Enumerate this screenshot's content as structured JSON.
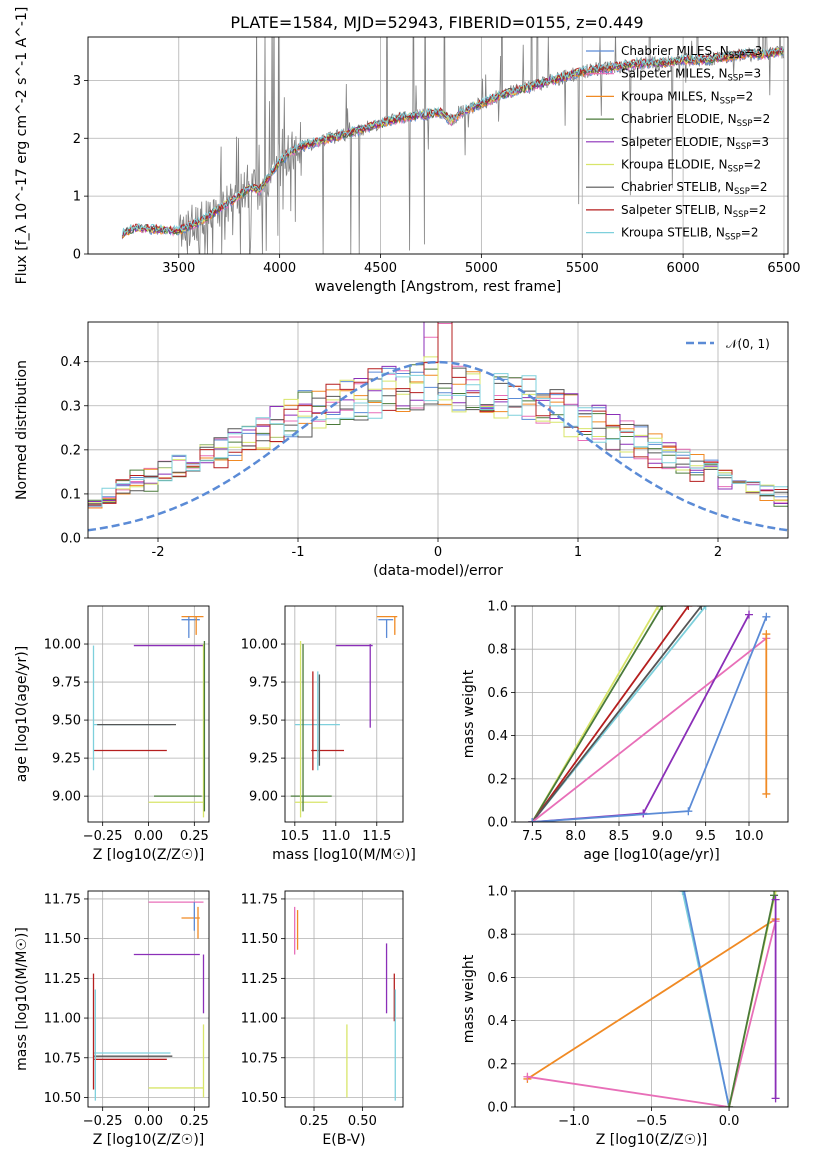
{
  "figure": {
    "title": "PLATE=1584, MJD=52943, FIBERID=0155, z=0.449"
  },
  "colors": {
    "Chabrier MILES": "#5b8bd6",
    "Salpeter MILES": "#e86fb8",
    "Kroupa MILES": "#f08a24",
    "Chabrier ELODIE": "#4a7a3a",
    "Salpeter ELODIE": "#8b2fb8",
    "Kroupa ELODIE": "#d8e56a",
    "Chabrier STELIB": "#555555",
    "Salpeter STELIB": "#b51f1f",
    "Kroupa STELIB": "#7ed0dc"
  },
  "chart_data": [
    {
      "id": "spectrum",
      "type": "line",
      "title": "PLATE=1584, MJD=52943, FIBERID=0155, z=0.449",
      "xlabel": "wavelength [Angstrom, rest frame]",
      "ylabel": "Flux [f_λ 10^-17 erg cm^-2 s^-1 A^-1]",
      "xlim": [
        3050,
        6520
      ],
      "ylim": [
        0,
        3.75
      ],
      "xticks": [
        3500,
        4000,
        4500,
        5000,
        5500,
        6000,
        6500
      ],
      "yticks": [
        0,
        1,
        2,
        3
      ],
      "legend_position": "top-right",
      "legend": [
        {
          "label": "Chabrier MILES, N_SSP=3",
          "main": "Chabrier MILES, N",
          "sub": "SSP",
          "tail": "=3"
        },
        {
          "label": "Salpeter MILES, N_SSP=3",
          "main": "Salpeter MILES, N",
          "sub": "SSP",
          "tail": "=3"
        },
        {
          "label": "Kroupa MILES, N_SSP=2",
          "main": "Kroupa MILES, N",
          "sub": "SSP",
          "tail": "=2"
        },
        {
          "label": "Chabrier ELODIE, N_SSP=2",
          "main": "Chabrier ELODIE, N",
          "sub": "SSP",
          "tail": "=2"
        },
        {
          "label": "Salpeter ELODIE, N_SSP=3",
          "main": "Salpeter ELODIE, N",
          "sub": "SSP",
          "tail": "=3"
        },
        {
          "label": "Kroupa ELODIE, N_SSP=2",
          "main": "Kroupa ELODIE, N",
          "sub": "SSP",
          "tail": "=2"
        },
        {
          "label": "Chabrier STELIB, N_SSP=2",
          "main": "Chabrier STELIB, N",
          "sub": "SSP",
          "tail": "=2"
        },
        {
          "label": "Salpeter STELIB, N_SSP=2",
          "main": "Salpeter STELIB, N",
          "sub": "SSP",
          "tail": "=2"
        },
        {
          "label": "Kroupa STELIB, N_SSP=2",
          "main": "Kroupa STELIB, N",
          "sub": "SSP",
          "tail": "=2"
        }
      ],
      "model_continuum": {
        "x": [
          3220,
          3260,
          3300,
          3400,
          3500,
          3600,
          3700,
          3800,
          3850,
          3900,
          3950,
          4000,
          4050,
          4100,
          4200,
          4300,
          4400,
          4500,
          4600,
          4700,
          4800,
          4850,
          4900,
          5000,
          5100,
          5200,
          5300,
          5400,
          5500,
          5600,
          5700,
          5800,
          5900,
          6000,
          6100,
          6200,
          6300,
          6400,
          6500
        ],
        "y": [
          0.35,
          0.42,
          0.45,
          0.42,
          0.4,
          0.55,
          0.78,
          1.0,
          1.15,
          1.1,
          1.35,
          1.6,
          1.75,
          1.85,
          1.95,
          2.05,
          2.15,
          2.25,
          2.35,
          2.4,
          2.45,
          2.3,
          2.45,
          2.6,
          2.75,
          2.85,
          2.95,
          3.05,
          3.15,
          3.2,
          3.25,
          3.3,
          3.3,
          3.35,
          3.35,
          3.4,
          3.45,
          3.45,
          3.5
        ]
      }
    },
    {
      "id": "residuals",
      "type": "histogram",
      "xlabel": "(data-model)/error",
      "ylabel": "Normed distribution",
      "xlim": [
        -2.5,
        2.5
      ],
      "ylim": [
        0,
        0.49
      ],
      "xticks": [
        -2,
        -1,
        0,
        1,
        2
      ],
      "yticks": [
        0.0,
        0.1,
        0.2,
        0.3,
        0.4
      ],
      "legend_position": "top-right",
      "legend": [
        {
          "label": "N(0,1)",
          "text": "𝒩(0, 1)"
        }
      ],
      "bin_width": 0.1
    },
    {
      "id": "age-vs-Z",
      "type": "scatter",
      "xlabel": "Z [log10(Z/Z☉)]",
      "ylabel": "age [log10(age/yr)]",
      "xlim": [
        -0.33,
        0.33
      ],
      "ylim": [
        8.83,
        10.25
      ],
      "xticks": [
        -0.25,
        0.0,
        0.25
      ],
      "yticks": [
        9.0,
        9.25,
        9.5,
        9.75,
        10.0
      ],
      "segments": [
        {
          "series": "Kroupa MILES",
          "h": [
            0.18,
            0.3,
            10.18
          ]
        },
        {
          "series": "Chabrier MILES",
          "h": [
            0.18,
            0.28,
            10.16
          ]
        },
        {
          "series": "Salpeter ELODIE",
          "h": [
            -0.08,
            0.3,
            9.99
          ]
        },
        {
          "series": "Kroupa STELIB",
          "h": [
            -0.3,
            0.12,
            9.47
          ]
        },
        {
          "series": "Chabrier STELIB",
          "h": [
            -0.28,
            0.15,
            9.47
          ]
        },
        {
          "series": "Salpeter STELIB",
          "h": [
            -0.3,
            0.1,
            9.3
          ]
        },
        {
          "series": "Chabrier ELODIE",
          "h": [
            0.03,
            0.29,
            9.0
          ]
        },
        {
          "series": "Kroupa ELODIE",
          "h": [
            0.0,
            0.3,
            8.96
          ]
        },
        {
          "series": "Kroupa STELIB",
          "v": [
            -0.3,
            9.17,
            9.99
          ]
        },
        {
          "series": "Kroupa ELODIE",
          "v": [
            0.3,
            8.86,
            10.0
          ]
        },
        {
          "series": "Chabrier ELODIE",
          "v": [
            0.305,
            8.9,
            10.02
          ]
        },
        {
          "series": "Chabrier MILES",
          "v": [
            0.22,
            10.04,
            10.18
          ]
        },
        {
          "series": "Kroupa MILES",
          "v": [
            0.26,
            10.06,
            10.18
          ]
        }
      ]
    },
    {
      "id": "age-vs-mass",
      "type": "scatter",
      "xlabel": "mass [log10(M/M☉)]",
      "ylabel": "",
      "xlim": [
        10.38,
        11.82
      ],
      "ylim": [
        8.83,
        10.25
      ],
      "xticks": [
        10.5,
        11.0,
        11.5
      ],
      "yticks": [
        9.0,
        9.25,
        9.5,
        9.75,
        10.0
      ],
      "segments": [
        {
          "series": "Kroupa MILES",
          "h": [
            11.5,
            11.75,
            10.18
          ]
        },
        {
          "series": "Chabrier MILES",
          "h": [
            11.52,
            11.7,
            10.16
          ]
        },
        {
          "series": "Salpeter ELODIE",
          "h": [
            11.0,
            11.45,
            9.99
          ]
        },
        {
          "series": "Kroupa STELIB",
          "h": [
            10.5,
            11.05,
            9.47
          ]
        },
        {
          "series": "Salpeter STELIB",
          "h": [
            10.7,
            11.1,
            9.3
          ]
        },
        {
          "series": "Chabrier ELODIE",
          "h": [
            10.45,
            10.95,
            9.0
          ]
        },
        {
          "series": "Kroupa ELODIE",
          "h": [
            10.5,
            10.9,
            8.96
          ]
        },
        {
          "series": "Kroupa ELODIE",
          "v": [
            10.57,
            8.86,
            10.02
          ]
        },
        {
          "series": "Chabrier ELODIE",
          "v": [
            10.6,
            8.9,
            10.0
          ]
        },
        {
          "series": "Salpeter STELIB",
          "v": [
            10.72,
            9.17,
            9.82
          ]
        },
        {
          "series": "Kroupa STELIB",
          "v": [
            10.78,
            9.17,
            9.82
          ]
        },
        {
          "series": "Chabrier STELIB",
          "v": [
            10.8,
            9.2,
            9.8
          ]
        },
        {
          "series": "Salpeter ELODIE",
          "v": [
            11.42,
            9.45,
            10.0
          ]
        },
        {
          "series": "Chabrier MILES",
          "v": [
            11.62,
            10.04,
            10.16
          ]
        },
        {
          "series": "Kroupa MILES",
          "v": [
            11.72,
            10.06,
            10.18
          ]
        }
      ]
    },
    {
      "id": "massweight-vs-age",
      "type": "line",
      "xlabel": "age [log10(age/yr)]",
      "ylabel": "mass weight",
      "xlim": [
        7.3,
        10.45
      ],
      "ylim": [
        0,
        1.0
      ],
      "xticks": [
        7.5,
        8.0,
        8.5,
        9.0,
        9.5,
        10.0
      ],
      "yticks": [
        0.0,
        0.2,
        0.4,
        0.6,
        0.8,
        1.0
      ],
      "lines": [
        {
          "series": "Kroupa ELODIE",
          "x": [
            7.5,
            8.95
          ],
          "y": [
            0.0,
            1.0
          ]
        },
        {
          "series": "Chabrier ELODIE",
          "x": [
            7.5,
            9.0
          ],
          "y": [
            0.0,
            1.0
          ]
        },
        {
          "series": "Salpeter STELIB",
          "x": [
            7.5,
            9.3
          ],
          "y": [
            0.0,
            1.0
          ]
        },
        {
          "series": "Kroupa STELIB",
          "x": [
            7.5,
            9.5
          ],
          "y": [
            0.0,
            1.0
          ]
        },
        {
          "series": "Chabrier STELIB",
          "x": [
            7.5,
            9.45
          ],
          "y": [
            0.0,
            1.0
          ]
        },
        {
          "series": "Salpeter MILES",
          "x": [
            7.5,
            10.2
          ],
          "y": [
            0.0,
            0.85
          ]
        },
        {
          "series": "Salpeter ELODIE",
          "x": [
            7.5,
            8.78,
            10.0
          ],
          "y": [
            0.0,
            0.04,
            0.96
          ]
        },
        {
          "series": "Chabrier MILES",
          "x": [
            7.5,
            9.3,
            10.2
          ],
          "y": [
            0.0,
            0.05,
            0.95
          ]
        },
        {
          "series": "Kroupa MILES",
          "x": [
            10.2,
            10.2
          ],
          "y": [
            0.13,
            0.87
          ]
        }
      ]
    },
    {
      "id": "mass-vs-Z",
      "type": "scatter",
      "xlabel": "Z [log10(Z/Z☉)]",
      "ylabel": "mass [log10(M/M☉)]",
      "xlim": [
        -0.33,
        0.33
      ],
      "ylim": [
        10.44,
        11.8
      ],
      "xticks": [
        -0.25,
        0.0,
        0.25
      ],
      "yticks": [
        10.5,
        10.75,
        11.0,
        11.25,
        11.5,
        11.75
      ],
      "segments": [
        {
          "series": "Salpeter MILES",
          "h": [
            0.0,
            0.3,
            11.73
          ]
        },
        {
          "series": "Kroupa MILES",
          "h": [
            0.18,
            0.28,
            11.63
          ]
        },
        {
          "series": "Salpeter ELODIE",
          "h": [
            -0.08,
            0.28,
            11.4
          ]
        },
        {
          "series": "Kroupa STELIB",
          "h": [
            -0.3,
            0.12,
            10.78
          ]
        },
        {
          "series": "Chabrier STELIB",
          "h": [
            -0.3,
            0.13,
            10.76
          ]
        },
        {
          "series": "Salpeter STELIB",
          "h": [
            -0.3,
            0.1,
            10.74
          ]
        },
        {
          "series": "Kroupa ELODIE",
          "h": [
            0.0,
            0.3,
            10.56
          ]
        },
        {
          "series": "Salpeter STELIB",
          "v": [
            -0.3,
            10.55,
            11.28
          ]
        },
        {
          "series": "Kroupa STELIB",
          "v": [
            -0.29,
            10.48,
            11.18
          ]
        },
        {
          "series": "Kroupa ELODIE",
          "v": [
            0.3,
            10.5,
            10.96
          ]
        },
        {
          "series": "Salpeter ELODIE",
          "v": [
            0.3,
            11.03,
            11.4
          ]
        },
        {
          "series": "Chabrier MILES",
          "v": [
            0.25,
            11.55,
            11.73
          ]
        },
        {
          "series": "Kroupa MILES",
          "v": [
            0.27,
            11.5,
            11.7
          ]
        }
      ]
    },
    {
      "id": "mass-vs-EBV",
      "type": "scatter",
      "xlabel": "E(B-V)",
      "ylabel": "",
      "xlim": [
        0.1,
        0.71
      ],
      "ylim": [
        10.44,
        11.8
      ],
      "xticks": [
        0.25,
        0.5
      ],
      "yticks": [
        10.5,
        10.75,
        11.0,
        11.25,
        11.5,
        11.75
      ],
      "segments": [
        {
          "series": "Salpeter MILES",
          "v": [
            0.15,
            11.4,
            11.7
          ]
        },
        {
          "series": "Kroupa MILES",
          "v": [
            0.165,
            11.43,
            11.68
          ]
        },
        {
          "series": "Kroupa ELODIE",
          "v": [
            0.42,
            10.5,
            10.96
          ]
        },
        {
          "series": "Salpeter ELODIE",
          "v": [
            0.625,
            11.03,
            11.47
          ]
        },
        {
          "series": "Salpeter STELIB",
          "v": [
            0.665,
            10.98,
            11.28
          ]
        },
        {
          "series": "Kroupa STELIB",
          "v": [
            0.67,
            10.48,
            11.18
          ]
        }
      ]
    },
    {
      "id": "massweight-vs-Z",
      "type": "line",
      "xlabel": "Z [log10(Z/Z☉)]",
      "ylabel": "mass weight",
      "xlim": [
        -1.38,
        0.38
      ],
      "ylim": [
        0,
        1.0
      ],
      "xticks": [
        -1.0,
        -0.5,
        0.0
      ],
      "yticks": [
        0.0,
        0.2,
        0.4,
        0.6,
        0.8,
        1.0
      ],
      "lines": [
        {
          "series": "Kroupa STELIB",
          "x": [
            -0.3,
            0.0
          ],
          "y": [
            1.0,
            0.0
          ]
        },
        {
          "series": "Chabrier MILES",
          "x": [
            -0.29,
            0.0
          ],
          "y": [
            1.0,
            0.0
          ]
        },
        {
          "series": "Kroupa MILES",
          "x": [
            -1.3,
            0.3
          ],
          "y": [
            0.13,
            0.87
          ]
        },
        {
          "series": "Salpeter MILES",
          "x": [
            -1.3,
            0.0,
            0.3
          ],
          "y": [
            0.14,
            0.0,
            0.86
          ]
        },
        {
          "series": "Kroupa ELODIE",
          "x": [
            0.0,
            0.3
          ],
          "y": [
            0.0,
            1.0
          ]
        },
        {
          "series": "Chabrier ELODIE",
          "x": [
            0.0,
            0.29
          ],
          "y": [
            0.0,
            0.98
          ]
        },
        {
          "series": "Salpeter ELODIE",
          "x": [
            0.3,
            0.3
          ],
          "y": [
            0.04,
            0.96
          ]
        }
      ]
    }
  ]
}
